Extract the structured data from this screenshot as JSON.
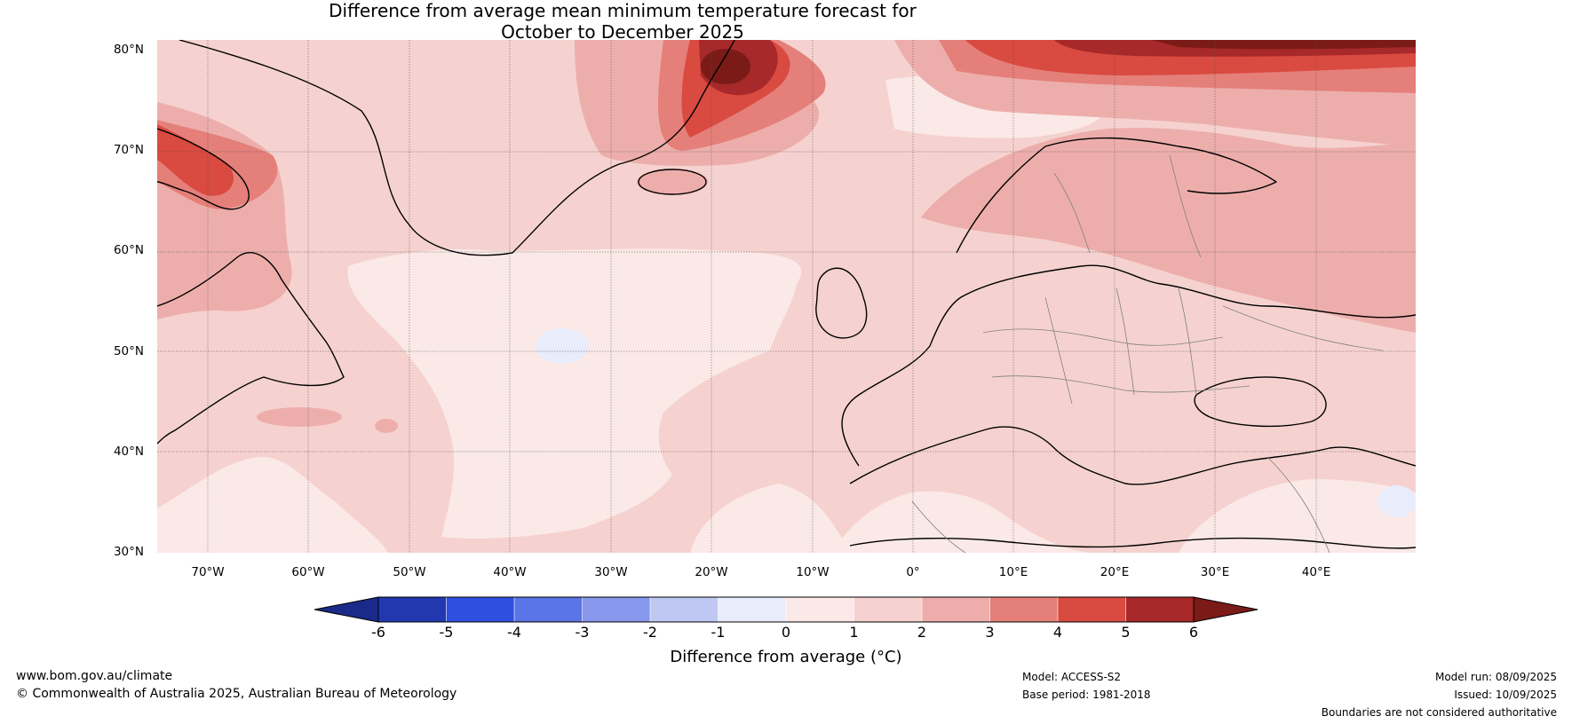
{
  "map": {
    "title_line1": "Difference from average mean minimum temperature forecast for",
    "title_line2": "October to December 2025",
    "lat_labels": [
      "80°N",
      "70°N",
      "60°N",
      "50°N",
      "40°N",
      "30°N"
    ],
    "lon_labels": [
      "70°W",
      "60°W",
      "50°W",
      "40°W",
      "30°W",
      "20°W",
      "10°W",
      "0°",
      "10°E",
      "20°E",
      "30°E",
      "40°E"
    ],
    "region": "North Atlantic and Europe"
  },
  "colorbar": {
    "ticks": [
      "-6",
      "-5",
      "-4",
      "-3",
      "-2",
      "-1",
      "0",
      "1",
      "2",
      "3",
      "4",
      "5",
      "6"
    ],
    "label": "Difference from average (°C)",
    "colors": {
      "below_min": "#1a2a8a",
      "bins": [
        "#2238b0",
        "#2f4fe0",
        "#5b74e6",
        "#8697ec",
        "#bfc8f3",
        "#e8ecfb",
        "#fbe9e7",
        "#f5d2cf",
        "#edaeab",
        "#e57f79",
        "#d94a40",
        "#a8292a"
      ],
      "above_max": "#7a1b17"
    }
  },
  "footer": {
    "website": "www.bom.gov.au/climate",
    "copyright": "© Commonwealth of Australia 2025, Australian Bureau of Meteorology",
    "model": "Model: ACCESS-S2",
    "base_period": "Base period: 1981-2018",
    "model_run": "Model run: 08/09/2025",
    "issued": "Issued: 10/09/2025",
    "disclaimer": "Boundaries are not considered authoritative"
  }
}
